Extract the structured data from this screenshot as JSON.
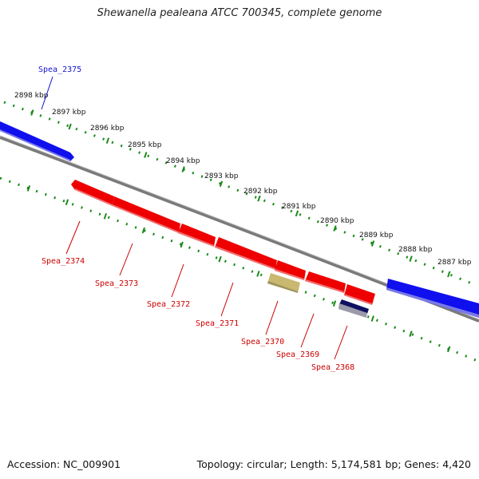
{
  "title": "Shewanella pealeana ATCC 700345, complete genome",
  "footer": {
    "accession": "Accession: NC_009901",
    "summary": "Topology: circular; Length: 5,174,581 bp; Genes: 4,420"
  },
  "colors": {
    "forward_gene": "#1010ee",
    "reverse_gene": "#ee0000",
    "rna_gene": "#c8b870",
    "other_gene": "#101060",
    "forward_label": "#1414cc",
    "reverse_label": "#cc0000",
    "tick": "#1a8a1a",
    "backbone": "#7a7a7a"
  },
  "ruler": [
    {
      "label": "2898 kbp"
    },
    {
      "label": "2897 kbp"
    },
    {
      "label": "2896 kbp"
    },
    {
      "label": "2895 kbp"
    },
    {
      "label": "2894 kbp"
    },
    {
      "label": "2893 kbp"
    },
    {
      "label": "2892 kbp"
    },
    {
      "label": "2891 kbp"
    },
    {
      "label": "2890 kbp"
    },
    {
      "label": "2889 kbp"
    },
    {
      "label": "2888 kbp"
    },
    {
      "label": "2887 kbp"
    }
  ],
  "genes": [
    {
      "name": "Spea_2375",
      "strand": "forward"
    },
    {
      "name": "Spea_2374",
      "strand": "reverse"
    },
    {
      "name": "Spea_2373",
      "strand": "reverse"
    },
    {
      "name": "Spea_2372",
      "strand": "reverse"
    },
    {
      "name": "Spea_2371",
      "strand": "reverse"
    },
    {
      "name": "Spea_2370",
      "strand": "reverse"
    },
    {
      "name": "Spea_2369",
      "strand": "reverse"
    },
    {
      "name": "Spea_2368",
      "strand": "reverse"
    },
    {
      "name": "",
      "strand": "forward"
    },
    {
      "name": "",
      "strand": "rna"
    },
    {
      "name": "",
      "strand": "other"
    }
  ]
}
